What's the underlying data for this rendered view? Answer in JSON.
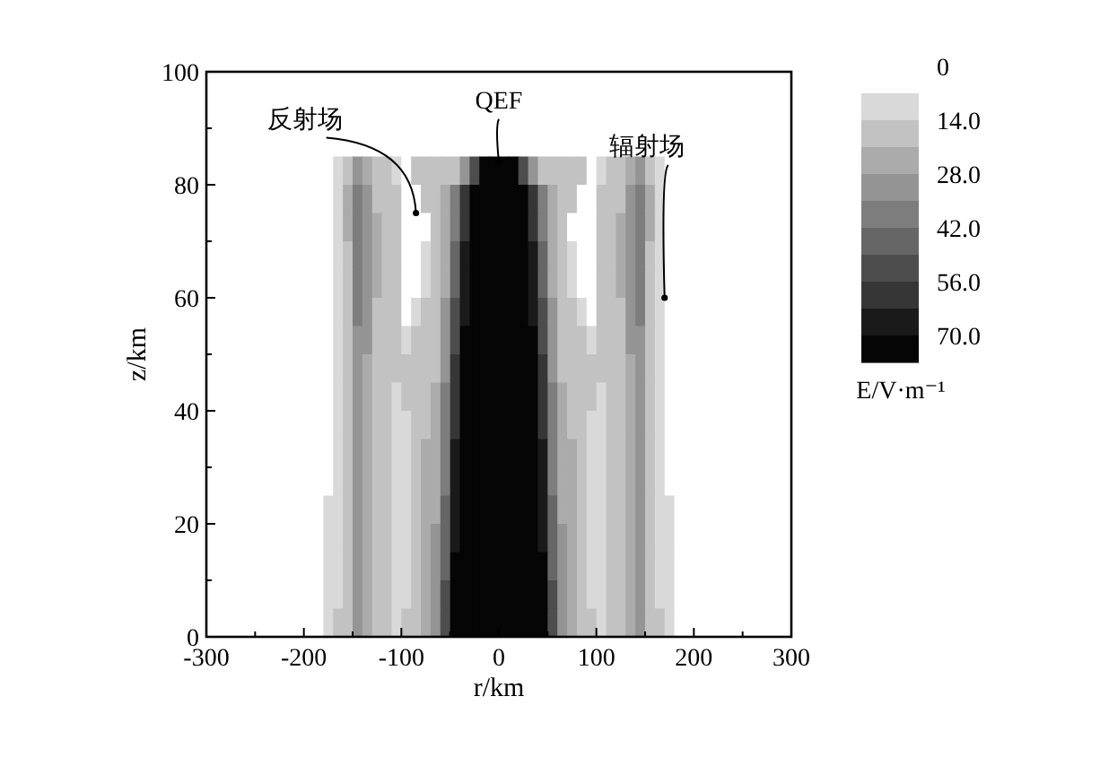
{
  "chart_data": {
    "type": "heatmap",
    "xlabel": "r/km",
    "ylabel": "z/km",
    "clabel": "E/V·m⁻¹",
    "xlim": [
      -300,
      300
    ],
    "ylim": [
      0,
      100
    ],
    "xticks": [
      -300,
      {
        "value": -250,
        "label": null
      },
      -200,
      {
        "value": -150,
        "label": null
      },
      -100,
      {
        "value": -50,
        "label": null
      },
      0,
      {
        "value": 50,
        "label": null
      },
      100,
      {
        "value": 150,
        "label": null
      },
      200,
      {
        "value": 250,
        "label": null
      },
      300
    ],
    "yticks": [
      0,
      {
        "value": 10,
        "label": null
      },
      20,
      {
        "value": 30,
        "label": null
      },
      40,
      {
        "value": 50,
        "label": null
      },
      60,
      {
        "value": 70,
        "label": null
      },
      80,
      {
        "value": 90,
        "label": null
      },
      100
    ],
    "clim": [
      0,
      77
    ],
    "cticks": [
      0,
      {
        "value": 14,
        "label": "14.0"
      },
      {
        "value": 28,
        "label": "28.0"
      },
      {
        "value": 42,
        "label": "42.0"
      },
      {
        "value": 56,
        "label": "56.0"
      },
      {
        "value": 70,
        "label": "70.0"
      }
    ],
    "colors": [
      "#ffffff",
      "#d9d9d9",
      "#c2c2c2",
      "#ababab",
      "#949494",
      "#7d7d7d",
      "#666666",
      "#4d4d4d",
      "#363636",
      "#1a1a1a",
      "#050505"
    ],
    "annotations": [
      {
        "text": "反射场",
        "x": -85,
        "y": 75
      },
      {
        "text": "QEF",
        "x": 0,
        "y": 84
      },
      {
        "text": "辐射场",
        "x": 170,
        "y": 60
      }
    ],
    "cells": [
      [
        3,
        3,
        3,
        3,
        3,
        3,
        3,
        3,
        3,
        3,
        3,
        3,
        3,
        3,
        3,
        3,
        3,
        3,
        3,
        3,
        3,
        3,
        3,
        3,
        3,
        3,
        3,
        3,
        3,
        3,
        3,
        3,
        3,
        3,
        3,
        3,
        3,
        3,
        3,
        3,
        3,
        3,
        3,
        3,
        3,
        3,
        3,
        3,
        3,
        3,
        3,
        3,
        3,
        3,
        3,
        3,
        3,
        3,
        3,
        3
      ],
      [
        3,
        3,
        3,
        3,
        3,
        3,
        3,
        3,
        3,
        3,
        3,
        3,
        3,
        3,
        3,
        3,
        3,
        3,
        3,
        3,
        3,
        3,
        3,
        3,
        3,
        3,
        3,
        3,
        3,
        3,
        3,
        3,
        3,
        3,
        3,
        3,
        3,
        3,
        3,
        3,
        3,
        3,
        3,
        3,
        3,
        3,
        3,
        3,
        3,
        3,
        3,
        3,
        3,
        3,
        3,
        3,
        3,
        3,
        3,
        3
      ],
      [
        3,
        3,
        3,
        3,
        3,
        3,
        3,
        3,
        3,
        3,
        3,
        3,
        3,
        3,
        3,
        3,
        3,
        3,
        3,
        3,
        3,
        3,
        3,
        3,
        3,
        3,
        3,
        3,
        3,
        3,
        3,
        3,
        3,
        3,
        3,
        3,
        3,
        3,
        3,
        3,
        3,
        3,
        3,
        3,
        3,
        3,
        3,
        3,
        3,
        3,
        3,
        3,
        3,
        3,
        3,
        3,
        3,
        3,
        3,
        3
      ],
      [
        3,
        3,
        3,
        3,
        3,
        3,
        3,
        3,
        3,
        3,
        3,
        3,
        3,
        10,
        17,
        31,
        24,
        17,
        17,
        10,
        3,
        17,
        17,
        17,
        17,
        17,
        31,
        52,
        73,
        73,
        73,
        73,
        52,
        31,
        17,
        17,
        17,
        17,
        17,
        3,
        10,
        17,
        17,
        24,
        31,
        17,
        10,
        3,
        3,
        3,
        3,
        3,
        3,
        3,
        3,
        3,
        3,
        3,
        3,
        3
      ],
      [
        3,
        3,
        3,
        3,
        3,
        3,
        3,
        3,
        3,
        3,
        3,
        3,
        3,
        10,
        24,
        38,
        31,
        17,
        17,
        17,
        3,
        3,
        17,
        17,
        24,
        38,
        59,
        73,
        73,
        73,
        73,
        73,
        73,
        59,
        38,
        24,
        17,
        17,
        3,
        3,
        17,
        17,
        17,
        31,
        38,
        24,
        10,
        3,
        3,
        3,
        3,
        3,
        3,
        3,
        3,
        3,
        3,
        3,
        3,
        3
      ],
      [
        3,
        3,
        3,
        3,
        3,
        3,
        3,
        3,
        3,
        3,
        3,
        3,
        3,
        10,
        24,
        38,
        31,
        24,
        17,
        17,
        3,
        3,
        3,
        17,
        24,
        38,
        59,
        73,
        73,
        73,
        73,
        73,
        73,
        59,
        38,
        24,
        17,
        3,
        3,
        3,
        17,
        17,
        24,
        31,
        38,
        24,
        10,
        3,
        3,
        3,
        3,
        3,
        3,
        3,
        3,
        3,
        3,
        3,
        3,
        3
      ],
      [
        3,
        3,
        3,
        3,
        3,
        3,
        3,
        3,
        3,
        3,
        3,
        3,
        3,
        10,
        17,
        38,
        31,
        24,
        17,
        17,
        3,
        3,
        10,
        17,
        24,
        45,
        66,
        73,
        73,
        73,
        73,
        73,
        73,
        66,
        45,
        24,
        17,
        10,
        3,
        3,
        17,
        17,
        24,
        31,
        38,
        17,
        10,
        3,
        3,
        3,
        3,
        3,
        3,
        3,
        3,
        3,
        3,
        3,
        3,
        3
      ],
      [
        3,
        3,
        3,
        3,
        3,
        3,
        3,
        3,
        3,
        3,
        3,
        3,
        3,
        10,
        17,
        38,
        31,
        24,
        17,
        17,
        3,
        3,
        10,
        17,
        24,
        45,
        66,
        73,
        73,
        73,
        73,
        73,
        73,
        66,
        45,
        24,
        17,
        10,
        3,
        3,
        17,
        17,
        24,
        31,
        38,
        17,
        10,
        3,
        3,
        3,
        3,
        3,
        3,
        3,
        3,
        3,
        3,
        3,
        3,
        3
      ],
      [
        3,
        3,
        3,
        3,
        3,
        3,
        3,
        3,
        3,
        3,
        3,
        3,
        3,
        10,
        17,
        38,
        31,
        17,
        17,
        17,
        3,
        10,
        17,
        17,
        31,
        52,
        66,
        73,
        73,
        73,
        73,
        73,
        73,
        66,
        52,
        31,
        17,
        17,
        10,
        3,
        17,
        17,
        17,
        31,
        38,
        17,
        10,
        3,
        3,
        3,
        3,
        3,
        3,
        3,
        3,
        3,
        3,
        3,
        3,
        3
      ],
      [
        3,
        3,
        3,
        3,
        3,
        3,
        3,
        3,
        3,
        3,
        3,
        3,
        3,
        10,
        17,
        31,
        31,
        17,
        17,
        17,
        10,
        17,
        17,
        17,
        31,
        52,
        73,
        73,
        73,
        73,
        73,
        73,
        73,
        73,
        52,
        31,
        17,
        17,
        17,
        10,
        17,
        17,
        17,
        31,
        31,
        17,
        10,
        3,
        3,
        3,
        3,
        3,
        3,
        3,
        3,
        3,
        3,
        3,
        3,
        3
      ],
      [
        3,
        3,
        3,
        3,
        3,
        3,
        3,
        3,
        3,
        3,
        3,
        3,
        3,
        10,
        17,
        31,
        24,
        17,
        17,
        17,
        17,
        17,
        17,
        17,
        31,
        59,
        73,
        73,
        73,
        73,
        73,
        73,
        73,
        73,
        59,
        31,
        17,
        17,
        17,
        17,
        17,
        17,
        17,
        24,
        31,
        17,
        10,
        3,
        3,
        3,
        3,
        3,
        3,
        3,
        3,
        3,
        3,
        3,
        3,
        3
      ],
      [
        3,
        3,
        3,
        3,
        3,
        3,
        3,
        3,
        3,
        3,
        3,
        3,
        3,
        10,
        17,
        31,
        24,
        17,
        17,
        10,
        17,
        17,
        17,
        24,
        38,
        59,
        73,
        73,
        73,
        73,
        73,
        73,
        73,
        73,
        59,
        38,
        24,
        17,
        17,
        17,
        10,
        17,
        17,
        24,
        31,
        17,
        10,
        3,
        3,
        3,
        3,
        3,
        3,
        3,
        3,
        3,
        3,
        3,
        3,
        3
      ],
      [
        3,
        3,
        3,
        3,
        3,
        3,
        3,
        3,
        3,
        3,
        3,
        3,
        3,
        10,
        17,
        31,
        24,
        17,
        17,
        10,
        10,
        17,
        17,
        24,
        38,
        59,
        73,
        73,
        73,
        73,
        73,
        73,
        73,
        73,
        59,
        38,
        24,
        17,
        17,
        10,
        10,
        17,
        17,
        24,
        31,
        17,
        10,
        3,
        3,
        3,
        3,
        3,
        3,
        3,
        3,
        3,
        3,
        3,
        3,
        3
      ],
      [
        3,
        3,
        3,
        3,
        3,
        3,
        3,
        3,
        3,
        3,
        3,
        3,
        3,
        10,
        17,
        31,
        24,
        17,
        17,
        10,
        10,
        17,
        24,
        24,
        38,
        66,
        73,
        73,
        73,
        73,
        73,
        73,
        73,
        73,
        66,
        38,
        24,
        24,
        17,
        10,
        10,
        17,
        17,
        24,
        31,
        17,
        10,
        3,
        3,
        3,
        3,
        3,
        3,
        3,
        3,
        3,
        3,
        3,
        3,
        3
      ],
      [
        3,
        3,
        3,
        3,
        3,
        3,
        3,
        3,
        3,
        3,
        3,
        3,
        3,
        10,
        17,
        31,
        24,
        17,
        17,
        10,
        10,
        17,
        24,
        24,
        38,
        66,
        73,
        73,
        73,
        73,
        73,
        73,
        73,
        73,
        66,
        38,
        24,
        24,
        17,
        10,
        10,
        17,
        17,
        24,
        31,
        17,
        10,
        3,
        3,
        3,
        3,
        3,
        3,
        3,
        3,
        3,
        3,
        3,
        3,
        3
      ],
      [
        3,
        3,
        3,
        3,
        3,
        3,
        3,
        3,
        3,
        3,
        3,
        3,
        10,
        10,
        17,
        31,
        24,
        17,
        17,
        10,
        10,
        17,
        24,
        24,
        45,
        66,
        73,
        73,
        73,
        73,
        73,
        73,
        73,
        73,
        66,
        45,
        24,
        24,
        17,
        10,
        10,
        17,
        17,
        24,
        31,
        17,
        10,
        10,
        3,
        3,
        3,
        3,
        3,
        3,
        3,
        3,
        3,
        3,
        3,
        3
      ],
      [
        3,
        3,
        3,
        3,
        3,
        3,
        3,
        3,
        3,
        3,
        3,
        3,
        10,
        10,
        17,
        31,
        24,
        17,
        17,
        10,
        10,
        17,
        24,
        31,
        45,
        66,
        73,
        73,
        73,
        73,
        73,
        73,
        73,
        73,
        66,
        45,
        31,
        24,
        17,
        10,
        10,
        17,
        17,
        24,
        31,
        17,
        10,
        10,
        3,
        3,
        3,
        3,
        3,
        3,
        3,
        3,
        3,
        3,
        3,
        3
      ],
      [
        3,
        3,
        3,
        3,
        3,
        3,
        3,
        3,
        3,
        3,
        3,
        3,
        10,
        10,
        17,
        31,
        24,
        17,
        17,
        10,
        10,
        17,
        24,
        31,
        45,
        73,
        73,
        73,
        73,
        73,
        73,
        73,
        73,
        73,
        73,
        45,
        31,
        24,
        17,
        10,
        10,
        17,
        17,
        24,
        31,
        17,
        10,
        10,
        3,
        3,
        3,
        3,
        3,
        3,
        3,
        3,
        3,
        3,
        3,
        3
      ],
      [
        3,
        3,
        3,
        3,
        3,
        3,
        3,
        3,
        3,
        3,
        3,
        3,
        10,
        10,
        17,
        31,
        24,
        17,
        17,
        10,
        10,
        17,
        24,
        31,
        52,
        73,
        73,
        73,
        73,
        73,
        73,
        73,
        73,
        73,
        73,
        52,
        31,
        24,
        17,
        10,
        10,
        17,
        17,
        24,
        31,
        17,
        10,
        10,
        3,
        3,
        3,
        3,
        3,
        3,
        3,
        3,
        3,
        3,
        3,
        3
      ],
      [
        3,
        3,
        3,
        3,
        3,
        3,
        3,
        3,
        3,
        3,
        3,
        3,
        10,
        17,
        17,
        31,
        24,
        17,
        17,
        10,
        17,
        17,
        24,
        31,
        52,
        73,
        73,
        73,
        73,
        73,
        73,
        73,
        73,
        73,
        73,
        52,
        31,
        24,
        17,
        17,
        10,
        17,
        17,
        24,
        31,
        17,
        17,
        10,
        3,
        3,
        3,
        3,
        3,
        3,
        3,
        3,
        3,
        3,
        3,
        3
      ]
    ]
  }
}
